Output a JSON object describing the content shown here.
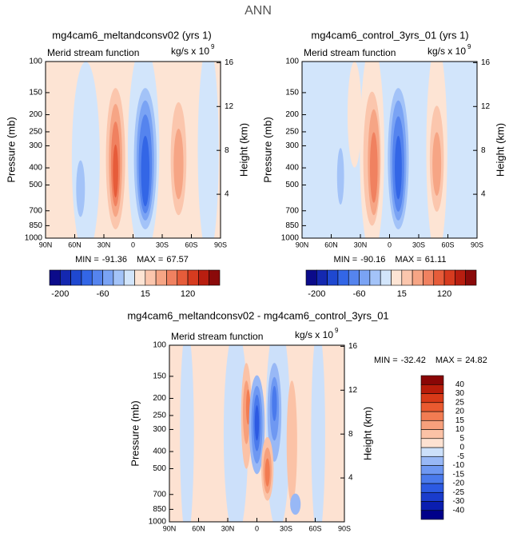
{
  "title": "ANN",
  "chart_data": [
    {
      "type": "contour",
      "title": "mg4cam6_meltandconsv02 (yrs 1)",
      "left_label": "Merid stream function",
      "units": "kg/s x 10",
      "units_exp": 9,
      "ylabel": "Pressure (mb)",
      "y2label": "Height (km)",
      "yscale": "log",
      "ylim": [
        100,
        1000
      ],
      "yticks": [
        100,
        150,
        200,
        250,
        300,
        400,
        500,
        700,
        850,
        1000
      ],
      "y2lim": [
        0,
        16.1
      ],
      "y2ticks": [
        4,
        8,
        12,
        16
      ],
      "xlim": [
        90,
        -90
      ],
      "xticks": [
        {
          "value": 90,
          "label": "90N"
        },
        {
          "value": 60,
          "label": "60N"
        },
        {
          "value": 30,
          "label": "30N"
        },
        0,
        {
          "value": -30,
          "label": "30S"
        },
        {
          "value": -60,
          "label": "60S"
        },
        {
          "value": -90,
          "label": "90S"
        }
      ],
      "stats": [
        {
          "label": "MIN =",
          "value": -91.36
        },
        {
          "label": "MAX =",
          "value": 67.57
        }
      ],
      "colorbar": {
        "orientation": "horizontal",
        "colors": [
          "#0b0b8a",
          "#1428b0",
          "#1f48d0",
          "#3366e6",
          "#5584ee",
          "#7aa3f4",
          "#a3c3f8",
          "#d2e5fb",
          "#fde4d4",
          "#fbc6ad",
          "#f6a585",
          "#f08160",
          "#e65c3a",
          "#d63b1f",
          "#b81e10",
          "#8a0a0a"
        ],
        "ticks": [
          -200,
          -60,
          15,
          120
        ]
      }
    },
    {
      "type": "contour",
      "title": "mg4cam6_control_3yrs_01 (yrs 1)",
      "left_label": "Merid stream function",
      "units": "kg/s x 10",
      "units_exp": 9,
      "ylabel": "Pressure (mb)",
      "y2label": "Height (km)",
      "yscale": "log",
      "ylim": [
        100,
        1000
      ],
      "yticks": [
        100,
        150,
        200,
        250,
        300,
        400,
        500,
        700,
        850,
        1000
      ],
      "y2lim": [
        0,
        16.1
      ],
      "y2ticks": [
        4,
        8,
        12,
        16
      ],
      "xlim": [
        90,
        -90
      ],
      "xticks": [
        {
          "value": 90,
          "label": "90N"
        },
        {
          "value": 60,
          "label": "60N"
        },
        {
          "value": 30,
          "label": "30N"
        },
        0,
        {
          "value": -30,
          "label": "30S"
        },
        {
          "value": -60,
          "label": "60S"
        },
        {
          "value": -90,
          "label": "90S"
        }
      ],
      "stats": [
        {
          "label": "MIN =",
          "value": -90.16
        },
        {
          "label": "MAX =",
          "value": 61.11
        }
      ],
      "colorbar": {
        "orientation": "horizontal",
        "colors": [
          "#0b0b8a",
          "#1428b0",
          "#1f48d0",
          "#3366e6",
          "#5584ee",
          "#7aa3f4",
          "#a3c3f8",
          "#d2e5fb",
          "#fde4d4",
          "#fbc6ad",
          "#f6a585",
          "#f08160",
          "#e65c3a",
          "#d63b1f",
          "#b81e10",
          "#8a0a0a"
        ],
        "ticks": [
          -200,
          -60,
          15,
          120
        ]
      }
    },
    {
      "type": "contour",
      "title": "mg4cam6_meltandconsv02 - mg4cam6_control_3yrs_01",
      "left_label": "Merid stream function",
      "units": "kg/s x 10",
      "units_exp": 9,
      "ylabel": "Pressure (mb)",
      "y2label": "Height (km)",
      "yscale": "log",
      "ylim": [
        100,
        1000
      ],
      "yticks": [
        100,
        150,
        200,
        250,
        300,
        400,
        500,
        700,
        850,
        1000
      ],
      "y2lim": [
        0,
        16.1
      ],
      "y2ticks": [
        4,
        8,
        12,
        16
      ],
      "xlim": [
        90,
        -90
      ],
      "xticks": [
        {
          "value": 90,
          "label": "90N"
        },
        {
          "value": 60,
          "label": "60N"
        },
        {
          "value": 30,
          "label": "30N"
        },
        0,
        {
          "value": -30,
          "label": "30S"
        },
        {
          "value": -60,
          "label": "60S"
        },
        {
          "value": -90,
          "label": "90S"
        }
      ],
      "stats": [
        {
          "label": "MIN =",
          "value": -32.42
        },
        {
          "label": "MAX =",
          "value": 24.82
        }
      ],
      "colorbar": {
        "orientation": "vertical",
        "colors": [
          "#00008a",
          "#0a1eb0",
          "#1a3ccc",
          "#2c5ae2",
          "#4a7aec",
          "#6e98f2",
          "#98b8f6",
          "#cce0fa",
          "#fde2d2",
          "#fbc2a6",
          "#f7a07c",
          "#f27c52",
          "#ea5a30",
          "#d83a18",
          "#b81c0a",
          "#8a0606"
        ],
        "ticks": [
          -40,
          -30,
          -25,
          -20,
          -15,
          -10,
          -5,
          0,
          5,
          10,
          15,
          20,
          25,
          30,
          40
        ]
      }
    }
  ]
}
